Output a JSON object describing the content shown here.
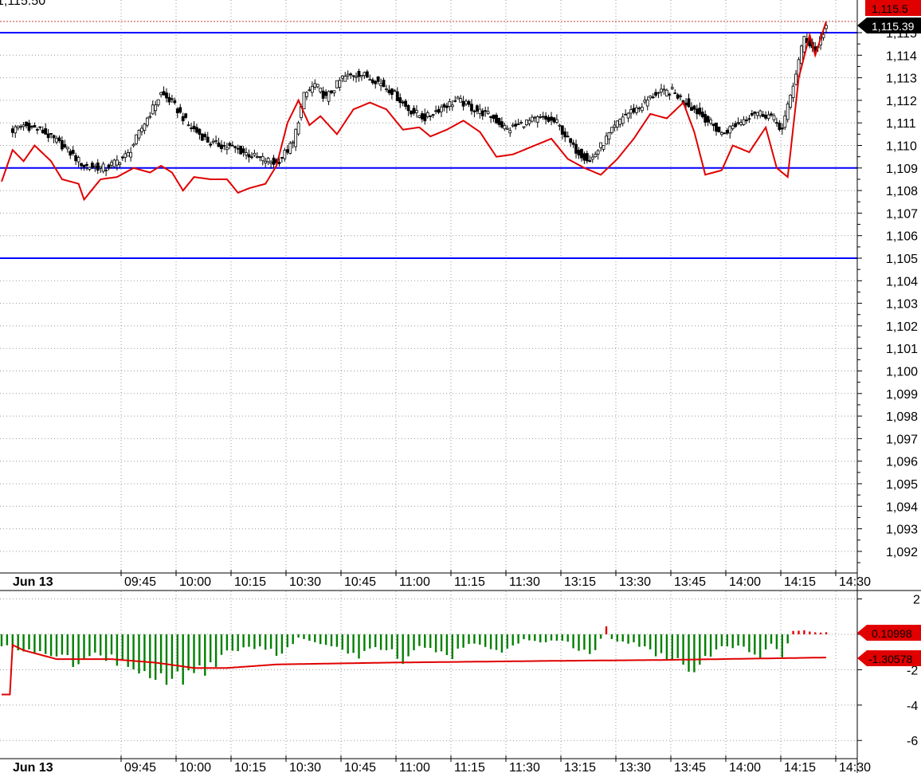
{
  "header": {
    "last_price_text": "1,115.50"
  },
  "tags": {
    "price_last": "1,115.5",
    "price_line": "1,115.39",
    "histogram_last": "0.10998",
    "signal_last": "-1.30578"
  },
  "colors": {
    "horizontal_lines": "#0000ff",
    "red_line": "#e00000",
    "histogram_up": "#e00000",
    "histogram_down": "#008000",
    "candle_up": "#ffffff",
    "candle_down": "#000000",
    "grid": "#999999",
    "tag_black": "#000000",
    "tag_red": "#e00000"
  },
  "chart_data": [
    {
      "type": "candlestick",
      "title": "",
      "x_ticks": [
        "Jun 13",
        "09:45",
        "10:00",
        "10:15",
        "10:30",
        "10:45",
        "11:00",
        "11:15",
        "11:30",
        "13:15",
        "13:30",
        "13:45",
        "14:00",
        "14:15",
        "14:30"
      ],
      "y_ticks": [
        "1,115",
        "1,114",
        "1,113",
        "1,112",
        "1,111",
        "1,110",
        "1,109",
        "1,108",
        "1,107",
        "1,106",
        "1,105",
        "1,104",
        "1,103",
        "1,102",
        "1,101",
        "1,100",
        "1,099",
        "1,098",
        "1,097",
        "1,096",
        "1,095",
        "1,094",
        "1,093",
        "1,092"
      ],
      "ylim": [
        1091.0,
        1116.5
      ],
      "grid": true,
      "horizontal_lines": [
        1115.0,
        1109.0,
        1105.0
      ],
      "close_anchors": [
        [
          0,
          1110.4
        ],
        [
          8,
          1110.9
        ],
        [
          14,
          1110.7
        ],
        [
          22,
          1110.0
        ],
        [
          30,
          1109.1
        ],
        [
          38,
          1109.0
        ],
        [
          46,
          1109.6
        ],
        [
          52,
          1111.0
        ],
        [
          58,
          1112.3
        ],
        [
          62,
          1111.9
        ],
        [
          68,
          1110.9
        ],
        [
          76,
          1110.1
        ],
        [
          84,
          1109.9
        ],
        [
          92,
          1109.5
        ],
        [
          100,
          1109.2
        ],
        [
          106,
          1110.1
        ],
        [
          110,
          1112.2
        ],
        [
          114,
          1112.7
        ],
        [
          118,
          1112.1
        ],
        [
          124,
          1113.0
        ],
        [
          130,
          1113.2
        ],
        [
          136,
          1112.9
        ],
        [
          142,
          1112.4
        ],
        [
          148,
          1111.6
        ],
        [
          154,
          1111.2
        ],
        [
          160,
          1111.7
        ],
        [
          166,
          1112.0
        ],
        [
          172,
          1111.6
        ],
        [
          178,
          1111.3
        ],
        [
          184,
          1110.7
        ],
        [
          190,
          1111.0
        ],
        [
          196,
          1111.2
        ],
        [
          202,
          1111.0
        ],
        [
          208,
          1109.9
        ],
        [
          214,
          1109.3
        ],
        [
          220,
          1110.3
        ],
        [
          226,
          1111.3
        ],
        [
          232,
          1111.7
        ],
        [
          238,
          1112.3
        ],
        [
          244,
          1112.4
        ],
        [
          250,
          1111.8
        ],
        [
          256,
          1111.2
        ],
        [
          262,
          1110.5
        ],
        [
          268,
          1111.0
        ],
        [
          274,
          1111.5
        ],
        [
          280,
          1111.3
        ],
        [
          284,
          1110.7
        ],
        [
          288,
          1112.7
        ],
        [
          292,
          1114.8
        ],
        [
          296,
          1114.2
        ],
        [
          300,
          1115.3
        ]
      ],
      "red_line_anchors": [
        [
          0,
          1108.4
        ],
        [
          4,
          1109.8
        ],
        [
          8,
          1109.3
        ],
        [
          12,
          1110.0
        ],
        [
          18,
          1109.3
        ],
        [
          22,
          1108.5
        ],
        [
          28,
          1108.3
        ],
        [
          30,
          1107.6
        ],
        [
          36,
          1108.5
        ],
        [
          42,
          1108.6
        ],
        [
          48,
          1109.0
        ],
        [
          54,
          1108.8
        ],
        [
          58,
          1109.1
        ],
        [
          62,
          1108.8
        ],
        [
          66,
          1108.0
        ],
        [
          70,
          1108.6
        ],
        [
          76,
          1108.5
        ],
        [
          82,
          1108.5
        ],
        [
          86,
          1107.9
        ],
        [
          90,
          1108.1
        ],
        [
          96,
          1108.3
        ],
        [
          100,
          1109.1
        ],
        [
          104,
          1111.0
        ],
        [
          108,
          1112.0
        ],
        [
          112,
          1110.9
        ],
        [
          116,
          1111.3
        ],
        [
          122,
          1110.5
        ],
        [
          128,
          1111.6
        ],
        [
          134,
          1111.9
        ],
        [
          140,
          1111.6
        ],
        [
          146,
          1110.7
        ],
        [
          152,
          1110.8
        ],
        [
          156,
          1110.4
        ],
        [
          162,
          1110.7
        ],
        [
          168,
          1111.1
        ],
        [
          174,
          1110.6
        ],
        [
          180,
          1109.5
        ],
        [
          186,
          1109.6
        ],
        [
          192,
          1109.9
        ],
        [
          200,
          1110.3
        ],
        [
          206,
          1109.4
        ],
        [
          212,
          1109.0
        ],
        [
          218,
          1108.7
        ],
        [
          224,
          1109.4
        ],
        [
          230,
          1110.3
        ],
        [
          236,
          1111.4
        ],
        [
          242,
          1111.2
        ],
        [
          248,
          1111.9
        ],
        [
          252,
          1110.6
        ],
        [
          256,
          1108.7
        ],
        [
          262,
          1108.9
        ],
        [
          266,
          1110.0
        ],
        [
          272,
          1109.7
        ],
        [
          278,
          1110.8
        ],
        [
          282,
          1109.0
        ],
        [
          286,
          1108.6
        ],
        [
          290,
          1113.0
        ],
        [
          294,
          1114.9
        ],
        [
          296,
          1114.0
        ],
        [
          300,
          1115.5
        ]
      ]
    },
    {
      "type": "bar",
      "title": "",
      "y_ticks": [
        "2",
        "0",
        "-2",
        "-4",
        "-6"
      ],
      "ylim": [
        -7.0,
        2.7
      ],
      "grid": true,
      "histogram_anchors": [
        [
          0,
          -0.6
        ],
        [
          10,
          -1.0
        ],
        [
          20,
          -1.1
        ],
        [
          26,
          -1.6
        ],
        [
          34,
          -1.0
        ],
        [
          40,
          -1.4
        ],
        [
          48,
          -1.9
        ],
        [
          54,
          -2.6
        ],
        [
          60,
          -2.8
        ],
        [
          66,
          -2.4
        ],
        [
          74,
          -2.0
        ],
        [
          82,
          -1.1
        ],
        [
          90,
          -0.6
        ],
        [
          96,
          -0.9
        ],
        [
          102,
          -1.1
        ],
        [
          108,
          -0.2
        ],
        [
          114,
          -0.4
        ],
        [
          120,
          -0.6
        ],
        [
          126,
          -1.0
        ],
        [
          130,
          -1.3
        ],
        [
          136,
          -0.8
        ],
        [
          142,
          -1.0
        ],
        [
          146,
          -1.5
        ],
        [
          152,
          -0.6
        ],
        [
          158,
          -1.0
        ],
        [
          164,
          -1.2
        ],
        [
          170,
          -0.5
        ],
        [
          176,
          -0.8
        ],
        [
          182,
          -1.0
        ],
        [
          190,
          -0.3
        ],
        [
          196,
          -0.5
        ],
        [
          204,
          -0.3
        ],
        [
          210,
          -0.9
        ],
        [
          216,
          -1.0
        ],
        [
          220,
          0.5
        ],
        [
          222,
          -0.3
        ],
        [
          226,
          -0.4
        ],
        [
          232,
          -0.6
        ],
        [
          236,
          -1.0
        ],
        [
          242,
          -1.2
        ],
        [
          248,
          -1.8
        ],
        [
          252,
          -1.8
        ],
        [
          258,
          -1.2
        ],
        [
          264,
          -0.6
        ],
        [
          270,
          -0.8
        ],
        [
          276,
          -1.2
        ],
        [
          280,
          -0.6
        ],
        [
          284,
          -1.2
        ],
        [
          288,
          0.2
        ],
        [
          292,
          0.2
        ],
        [
          296,
          0.1
        ],
        [
          300,
          0.11
        ]
      ],
      "signal_anchors": [
        [
          0,
          -3.4
        ],
        [
          3,
          -3.4
        ],
        [
          4,
          -0.6
        ],
        [
          8,
          -0.9
        ],
        [
          20,
          -1.4
        ],
        [
          40,
          -1.4
        ],
        [
          56,
          -1.6
        ],
        [
          70,
          -1.9
        ],
        [
          82,
          -1.9
        ],
        [
          100,
          -1.7
        ],
        [
          140,
          -1.6
        ],
        [
          200,
          -1.5
        ],
        [
          240,
          -1.45
        ],
        [
          300,
          -1.31
        ]
      ]
    }
  ]
}
